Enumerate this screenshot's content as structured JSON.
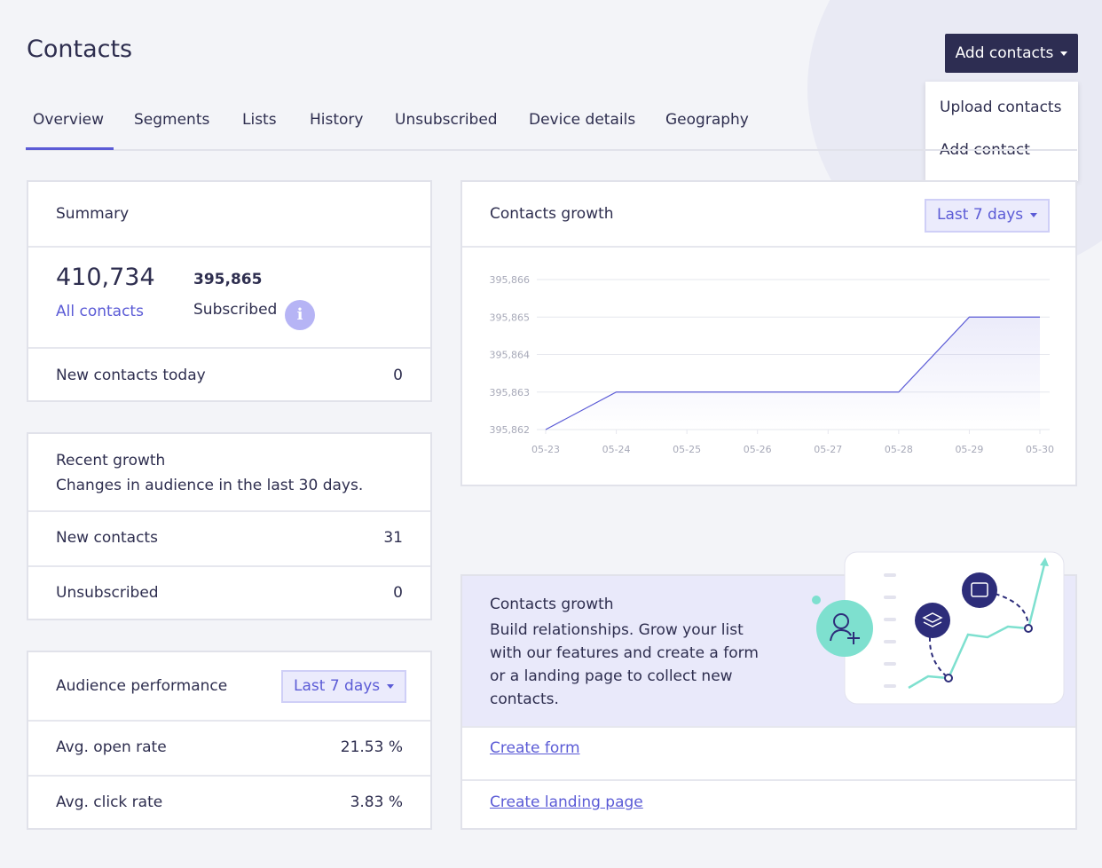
{
  "header": {
    "title": "Contacts",
    "add_button": "Add contacts",
    "menu": [
      "Upload contacts",
      "Add contact"
    ]
  },
  "tabs": [
    "Overview",
    "Segments",
    "Lists",
    "History",
    "Unsubscribed",
    "Device details",
    "Geography"
  ],
  "summary": {
    "title": "Summary",
    "total": "410,734",
    "total_label": "All contacts",
    "subscribed": "395,865",
    "subscribed_label": "Subscribed",
    "new_today_label": "New contacts today",
    "new_today": 0
  },
  "recent_growth": {
    "title": "Recent growth",
    "subtitle": "Changes in audience in the last 30 days.",
    "rows": [
      [
        "New contacts",
        31
      ],
      [
        "Unsubscribed",
        0
      ]
    ]
  },
  "audience": {
    "title": "Audience performance",
    "range": "Last 7 days",
    "rows": [
      [
        "Avg. open rate",
        "21.53 %"
      ],
      [
        "Avg. click rate",
        "3.83 %"
      ]
    ]
  },
  "growth_card": {
    "title": "Contacts growth",
    "range": "Last 7 days"
  },
  "chart_data": {
    "type": "line",
    "categories": [
      "05-23",
      "05-24",
      "05-25",
      "05-26",
      "05-27",
      "05-28",
      "05-29",
      "05-30"
    ],
    "values": [
      395862,
      395863,
      395863,
      395863,
      395863,
      395863,
      395865,
      395865
    ],
    "color": "#5b5bd6",
    "grid": true,
    "ylim": [
      395862,
      395866
    ],
    "yticks": [
      {
        "value": 395862,
        "label": "395,862"
      },
      {
        "value": 395863,
        "label": "395,863"
      },
      {
        "value": 395864,
        "label": "395,864"
      },
      {
        "value": 395865,
        "label": "395,865"
      },
      {
        "value": 395866,
        "label": "395,866"
      }
    ]
  },
  "promo": {
    "title": "Contacts growth",
    "text": "Build relationships. Grow your list with our features and create a form or a landing page to collect new contacts.",
    "links": [
      "Create form",
      "Create landing page"
    ]
  }
}
